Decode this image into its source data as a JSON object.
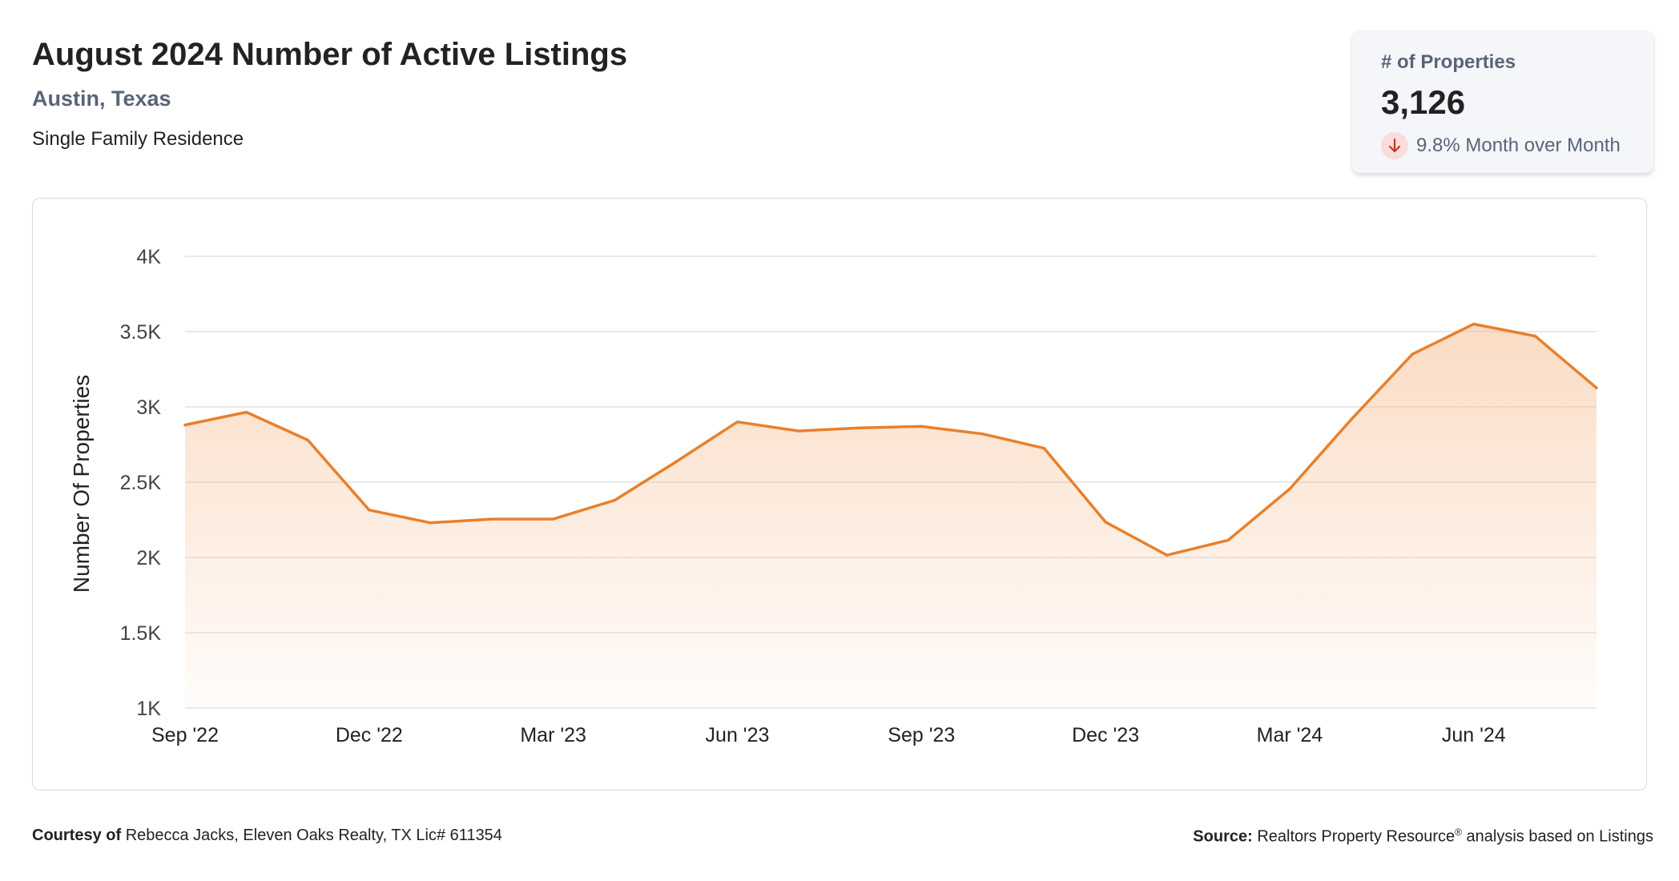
{
  "header": {
    "title": "August 2024 Number of Active Listings",
    "location": "Austin, Texas",
    "property_type": "Single Family Residence"
  },
  "stat_card": {
    "label": "# of Properties",
    "value": "3,126",
    "change": "9.8% Month over Month",
    "change_direction": "down",
    "change_color": "#c0392b"
  },
  "footer": {
    "courtesy_label": "Courtesy of",
    "courtesy_text": "Rebecca Jacks, Eleven Oaks Realty, TX Lic# 611354",
    "source_label": "Source:",
    "source_name": "Realtors Property Resource",
    "source_mark": "®",
    "source_text": "analysis based on Listings"
  },
  "chart_data": {
    "type": "area",
    "title": "",
    "xlabel": "",
    "ylabel": "Number Of Properties",
    "x": [
      "2022-09",
      "2022-10",
      "2022-11",
      "2022-12",
      "2023-01",
      "2023-02",
      "2023-03",
      "2023-04",
      "2023-05",
      "2023-06",
      "2023-07",
      "2023-08",
      "2023-09",
      "2023-10",
      "2023-11",
      "2023-12",
      "2024-01",
      "2024-02",
      "2024-03",
      "2024-04",
      "2024-05",
      "2024-06",
      "2024-07",
      "2024-08"
    ],
    "values": [
      2880,
      2965,
      2780,
      2315,
      2230,
      2255,
      2255,
      2380,
      2635,
      2900,
      2840,
      2860,
      2870,
      2820,
      2725,
      2235,
      2015,
      2115,
      2455,
      2915,
      3350,
      3550,
      3470,
      3126
    ],
    "x_ticks": [
      {
        "index": 0,
        "label": "Sep '22"
      },
      {
        "index": 3,
        "label": "Dec '22"
      },
      {
        "index": 6,
        "label": "Mar '23"
      },
      {
        "index": 9,
        "label": "Jun '23"
      },
      {
        "index": 12,
        "label": "Sep '23"
      },
      {
        "index": 15,
        "label": "Dec '23"
      },
      {
        "index": 18,
        "label": "Mar '24"
      },
      {
        "index": 21,
        "label": "Jun '24"
      }
    ],
    "y_ticks": [
      {
        "value": 1000,
        "label": "1K"
      },
      {
        "value": 1500,
        "label": "1.5K"
      },
      {
        "value": 2000,
        "label": "2K"
      },
      {
        "value": 2500,
        "label": "2.5K"
      },
      {
        "value": 3000,
        "label": "3K"
      },
      {
        "value": 3500,
        "label": "3.5K"
      },
      {
        "value": 4000,
        "label": "4K"
      }
    ],
    "ylim": [
      1000,
      4000
    ],
    "grid": true,
    "legend": "none",
    "line_color": "#e8802c",
    "fill_color": "#f6b98a",
    "grid_color": "#e2e2e2"
  }
}
